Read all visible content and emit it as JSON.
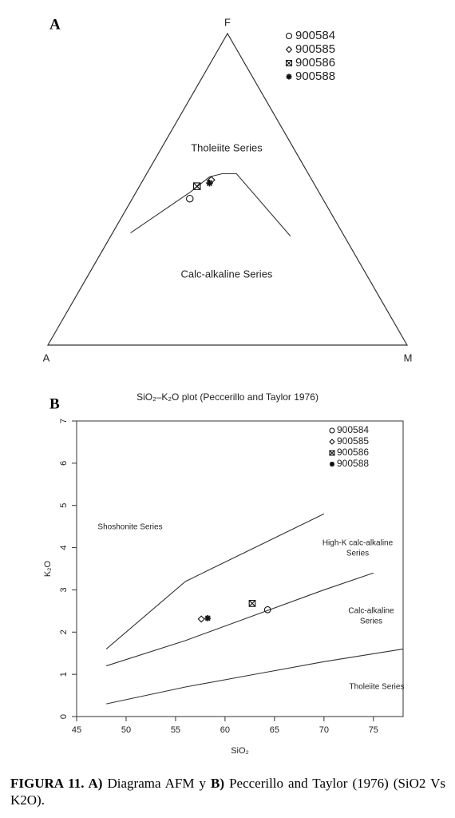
{
  "chart_data": [
    {
      "type": "ternary",
      "panel": "A",
      "vertices": {
        "top": "F",
        "left": "A",
        "right": "M"
      },
      "regions": [
        "Tholeiite Series",
        "Calc-alkaline Series"
      ],
      "boundary": {
        "a": [
          59,
          36,
          28,
          24,
          20,
          15
        ],
        "f": [
          36,
          49,
          54,
          55,
          55,
          35
        ],
        "m": [
          5,
          15,
          18,
          21,
          25,
          50
        ]
      },
      "series": [
        {
          "name": "900584",
          "marker": "circle",
          "a": [
            37
          ],
          "f": [
            47
          ],
          "m": [
            16
          ]
        },
        {
          "name": "900585",
          "marker": "diamond",
          "a": [
            28
          ],
          "f": [
            53
          ],
          "m": [
            19
          ]
        },
        {
          "name": "900586",
          "marker": "boxx",
          "a": [
            33
          ],
          "f": [
            51
          ],
          "m": [
            16
          ]
        },
        {
          "name": "900588",
          "marker": "star",
          "a": [
            29
          ],
          "f": [
            52
          ],
          "m": [
            19
          ]
        }
      ]
    },
    {
      "type": "scatter",
      "panel": "B",
      "title": "SiO₂–K₂O plot (Peccerillo and Taylor 1976)",
      "xlabel": "SiO₂",
      "ylabel": "K₂O",
      "xlim": [
        45,
        78
      ],
      "ylim": [
        0,
        7
      ],
      "xticks": [
        45,
        50,
        55,
        60,
        65,
        70,
        75
      ],
      "yticks": [
        0,
        1,
        2,
        3,
        4,
        5,
        6,
        7
      ],
      "regions": [
        [
          "Shoshonite Series"
        ],
        [
          "High-K calc-alkaline",
          "Series"
        ],
        [
          "Calc-alkaline",
          "Series"
        ],
        [
          "Tholeiite Series"
        ]
      ],
      "boundaries": [
        {
          "x": [
            48,
            56,
            70
          ],
          "y": [
            1.6,
            3.2,
            4.8
          ]
        },
        {
          "x": [
            48,
            56,
            63,
            70,
            75
          ],
          "y": [
            1.2,
            1.8,
            2.4,
            3.0,
            3.4
          ]
        },
        {
          "x": [
            48,
            56,
            63,
            70,
            78
          ],
          "y": [
            0.3,
            0.7,
            1.0,
            1.3,
            1.6
          ]
        }
      ],
      "series": [
        {
          "name": "900584",
          "marker": "circle",
          "x": [
            64.3
          ],
          "y": [
            2.53
          ]
        },
        {
          "name": "900585",
          "marker": "diamond",
          "x": [
            57.6
          ],
          "y": [
            2.31
          ]
        },
        {
          "name": "900586",
          "marker": "boxx",
          "x": [
            62.75
          ],
          "y": [
            2.68
          ]
        },
        {
          "name": "900588",
          "marker": "star",
          "x": [
            58.25
          ],
          "y": [
            2.33
          ]
        }
      ]
    }
  ],
  "caption": [
    {
      "text": "FIGURA 11. A)",
      "bold": true
    },
    {
      "text": "Diagrama AFM y",
      "bold": false
    },
    {
      "text": "B)",
      "bold": true
    },
    {
      "text": "Peccerillo and Taylor (1976) (SiO2 Vs K2O).",
      "bold": false
    }
  ]
}
